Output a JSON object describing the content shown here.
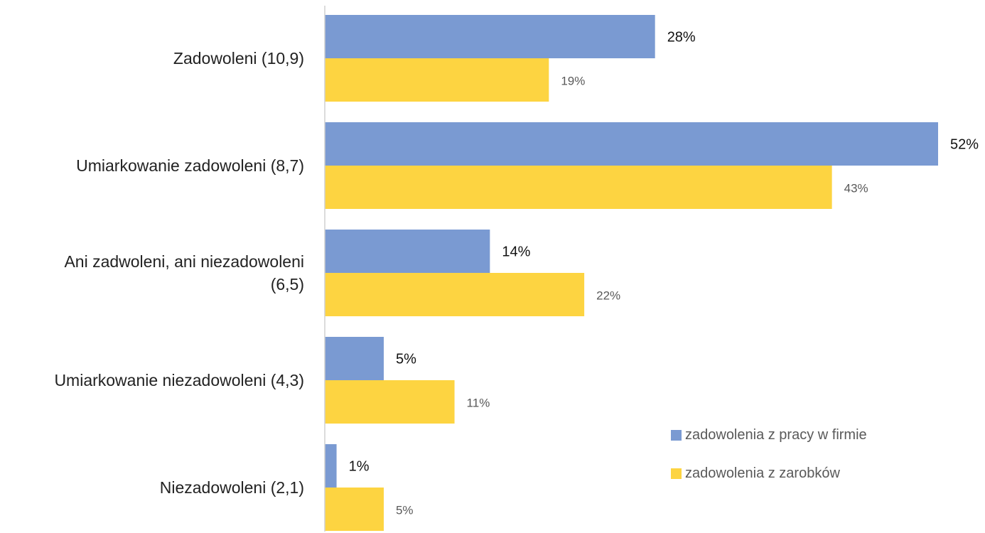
{
  "chart_data": {
    "type": "bar",
    "orientation": "horizontal",
    "categories": [
      [
        "Zadowoleni (10,9)"
      ],
      [
        "Umiarkowanie zadowoleni (8,7)"
      ],
      [
        "Ani zadwoleni, ani niezadowoleni",
        "(6,5)"
      ],
      [
        "Umiarkowanie niezadowoleni (4,3)"
      ],
      [
        "Niezadowoleni (2,1)"
      ]
    ],
    "series": [
      {
        "name": "zadowolenia z pracy w firmie",
        "color": "#7a9ad2",
        "values": [
          28,
          52,
          14,
          5,
          1
        ],
        "labels": [
          "28%",
          "52%",
          "14%",
          "5%",
          "1%"
        ]
      },
      {
        "name": "zadowolenia z zarobków",
        "color": "#fdd441",
        "values": [
          19,
          43,
          22,
          11,
          5
        ],
        "labels": [
          "19%",
          "43%",
          "22%",
          "11%",
          "5%"
        ]
      }
    ],
    "xlim": [
      0,
      52
    ],
    "legend_position": "bottom-right",
    "grid": false
  }
}
